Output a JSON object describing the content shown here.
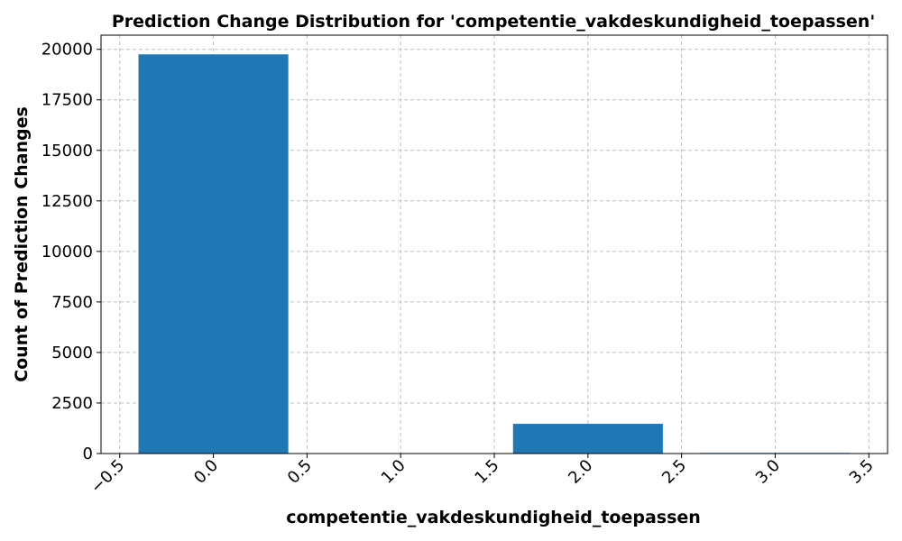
{
  "chart_data": {
    "type": "bar",
    "title": "Prediction Change Distribution for 'competentie_vakdeskundigheid_toepassen'",
    "xlabel": "competentie_vakdeskundigheid_toepassen",
    "ylabel": "Count of Prediction Changes",
    "x": [
      0,
      2,
      3
    ],
    "values": [
      19750,
      1470,
      30
    ],
    "bar_width": 0.8,
    "xlim": [
      -0.6,
      3.6
    ],
    "ylim": [
      0,
      20700
    ],
    "xticks": [
      -0.5,
      0.0,
      0.5,
      1.0,
      1.5,
      2.0,
      2.5,
      3.0,
      3.5
    ],
    "xtick_labels": [
      "−0.5",
      "0.0",
      "0.5",
      "1.0",
      "1.5",
      "2.0",
      "2.5",
      "3.0",
      "3.5"
    ],
    "yticks": [
      0,
      2500,
      5000,
      7500,
      10000,
      12500,
      15000,
      17500,
      20000
    ],
    "ytick_labels": [
      "0",
      "2500",
      "5000",
      "7500",
      "10000",
      "12500",
      "15000",
      "17500",
      "20000"
    ],
    "grid": true,
    "bar_color": "#1f77b4"
  }
}
